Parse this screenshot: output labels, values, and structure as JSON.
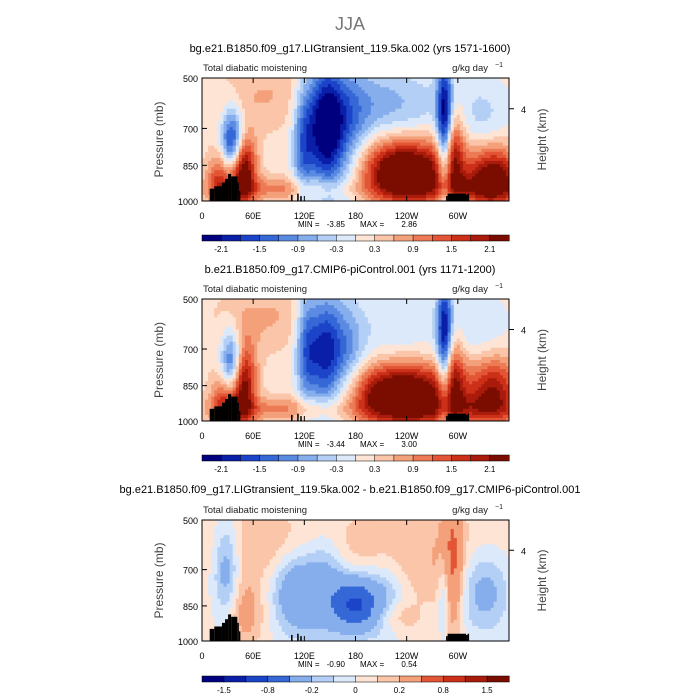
{
  "figure": {
    "title": "JJA"
  },
  "chart_data": [
    {
      "type": "heatmap",
      "title": "bg.e21.B1850.f09_g17.LIGtransient_119.5ka.002 (yrs 1571-1600)",
      "left_label": "Total diabatic moistening",
      "right_label": "g/kg day",
      "right_label_exp": "−1",
      "ylabel": "Pressure  (mb)",
      "ylabel_right": "Height  (km)",
      "x_ticks": [
        "0",
        "60E",
        "120E",
        "180",
        "120W",
        "60W"
      ],
      "y_ticks": [
        "500",
        "700",
        "850",
        "1000"
      ],
      "right_ticks": [
        "4"
      ],
      "min_label": "MIN =",
      "min_value": "-3.85",
      "max_label": "MAX =",
      "max_value": "2.86",
      "colorbar_labels": [
        "-2.1",
        "-1.5",
        "-0.9",
        "-0.3",
        "0.3",
        "0.9",
        "1.5",
        "2.1"
      ],
      "colorbar_levels": [
        -2.4,
        -2.1,
        -1.8,
        -1.5,
        -1.2,
        -0.9,
        -0.6,
        -0.3,
        0,
        0.3,
        0.6,
        0.9,
        1.2,
        1.5,
        1.8,
        2.1,
        2.4
      ]
    },
    {
      "type": "heatmap",
      "title": "b.e21.B1850.f09_g17.CMIP6-piControl.001 (yrs 1171-1200)",
      "left_label": "Total diabatic moistening",
      "right_label": "g/kg day",
      "right_label_exp": "−1",
      "ylabel": "Pressure  (mb)",
      "ylabel_right": "Height  (km)",
      "x_ticks": [
        "0",
        "60E",
        "120E",
        "180",
        "120W",
        "60W"
      ],
      "y_ticks": [
        "500",
        "700",
        "850",
        "1000"
      ],
      "right_ticks": [
        "4"
      ],
      "min_label": "MIN =",
      "min_value": "-3.44",
      "max_label": "MAX =",
      "max_value": "3.00",
      "colorbar_labels": [
        "-2.1",
        "-1.5",
        "-0.9",
        "-0.3",
        "0.3",
        "0.9",
        "1.5",
        "2.1"
      ],
      "colorbar_levels": [
        -2.4,
        -2.1,
        -1.8,
        -1.5,
        -1.2,
        -0.9,
        -0.6,
        -0.3,
        0,
        0.3,
        0.6,
        0.9,
        1.2,
        1.5,
        1.8,
        2.1,
        2.4
      ]
    },
    {
      "type": "heatmap",
      "title": "bg.e21.B1850.f09_g17.LIGtransient_119.5ka.002 - b.e21.B1850.f09_g17.CMIP6-piControl.001",
      "left_label": "Total diabatic moistening",
      "right_label": "g/kg day",
      "right_label_exp": "−1",
      "ylabel": "Pressure  (mb)",
      "ylabel_right": "Height  (km)",
      "x_ticks": [
        "0",
        "60E",
        "120E",
        "180",
        "120W",
        "60W"
      ],
      "y_ticks": [
        "500",
        "700",
        "850",
        "1000"
      ],
      "right_ticks": [
        "4"
      ],
      "min_label": "MIN =",
      "min_value": "-0.90",
      "max_label": "MAX =",
      "max_value": "0.54",
      "colorbar_labels": [
        "-1.5",
        "-0.8",
        "-0.2",
        "0",
        "0.2",
        "0.8",
        "1.5"
      ],
      "colorbar_levels": [
        -2,
        -1.5,
        -1.2,
        -0.8,
        -0.5,
        -0.2,
        -0.1,
        0,
        0.1,
        0.2,
        0.5,
        0.8,
        1.2,
        1.5,
        2
      ]
    }
  ],
  "palette": [
    "#00007f",
    "#0a1fa8",
    "#1c44c8",
    "#3568d6",
    "#5b8ae2",
    "#86aeec",
    "#b3cff5",
    "#dce9fb",
    "#fde4d4",
    "#fac5a8",
    "#f4a07a",
    "#ec7a55",
    "#e25535",
    "#cc3019",
    "#a91b0b",
    "#7a0d00"
  ],
  "land_color": "#000000"
}
